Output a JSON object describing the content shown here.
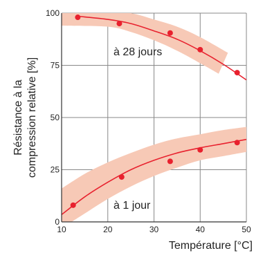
{
  "chart_data": {
    "type": "scatter",
    "xlabel": "Température [°C]",
    "ylabel_lines": [
      "Résistance à la",
      "compression relative [%]"
    ],
    "xlim": [
      10,
      50
    ],
    "ylim": [
      0,
      100
    ],
    "x_ticks": [
      10,
      20,
      30,
      40,
      50
    ],
    "y_ticks": [
      0,
      25,
      50,
      75,
      100
    ],
    "grid": true,
    "series": [
      {
        "name": "à 28 jours",
        "points": [
          [
            13.5,
            98
          ],
          [
            22.5,
            95
          ],
          [
            33.5,
            90.5
          ],
          [
            40,
            82.5
          ],
          [
            48,
            71.5
          ]
        ],
        "fit": [
          [
            13.5,
            98.5
          ],
          [
            20,
            97
          ],
          [
            25,
            95
          ],
          [
            30,
            91.5
          ],
          [
            35,
            87.5
          ],
          [
            40,
            82
          ],
          [
            45,
            75.5
          ],
          [
            50,
            68
          ]
        ],
        "band": {
          "upper": [
            [
              10,
              101
            ],
            [
              20,
              101
            ],
            [
              25,
              100
            ],
            [
              30,
              97
            ],
            [
              35,
              93.5
            ],
            [
              40,
              88.5
            ],
            [
              46,
              81
            ]
          ],
          "lower": [
            [
              10,
              94
            ],
            [
              20,
              93.5
            ],
            [
              25,
              91
            ],
            [
              30,
              87
            ],
            [
              35,
              82
            ],
            [
              40,
              76
            ],
            [
              44,
              71
            ]
          ]
        }
      },
      {
        "name": "à 1 jour",
        "points": [
          [
            12.5,
            8
          ],
          [
            23,
            21.5
          ],
          [
            33.5,
            29
          ],
          [
            40,
            34.5
          ],
          [
            48,
            38
          ]
        ],
        "fit": [
          [
            10,
            3.5
          ],
          [
            15,
            12
          ],
          [
            20,
            19
          ],
          [
            25,
            25
          ],
          [
            30,
            29.5
          ],
          [
            35,
            33
          ],
          [
            40,
            35.5
          ],
          [
            45,
            37.5
          ],
          [
            50,
            39.5
          ]
        ],
        "band": {
          "upper": [
            [
              10,
              16
            ],
            [
              15,
              23
            ],
            [
              20,
              28.5
            ],
            [
              25,
              33
            ],
            [
              30,
              37
            ],
            [
              35,
              40
            ],
            [
              40,
              42
            ],
            [
              45,
              44
            ],
            [
              50,
              45.5
            ]
          ],
          "lower": [
            [
              10,
              -3
            ],
            [
              15,
              4
            ],
            [
              20,
              11
            ],
            [
              25,
              17
            ],
            [
              30,
              22
            ],
            [
              35,
              26
            ],
            [
              40,
              29.5
            ],
            [
              45,
              31.5
            ],
            [
              50,
              33.5
            ]
          ]
        }
      }
    ],
    "annotations": [
      "à 28 jours",
      "à 1 jour"
    ],
    "colors": {
      "points": "#e8212e",
      "fit_line": "#e8212e",
      "band": "#f7c9b6",
      "grid": "#888888",
      "axis": "#333333"
    }
  }
}
